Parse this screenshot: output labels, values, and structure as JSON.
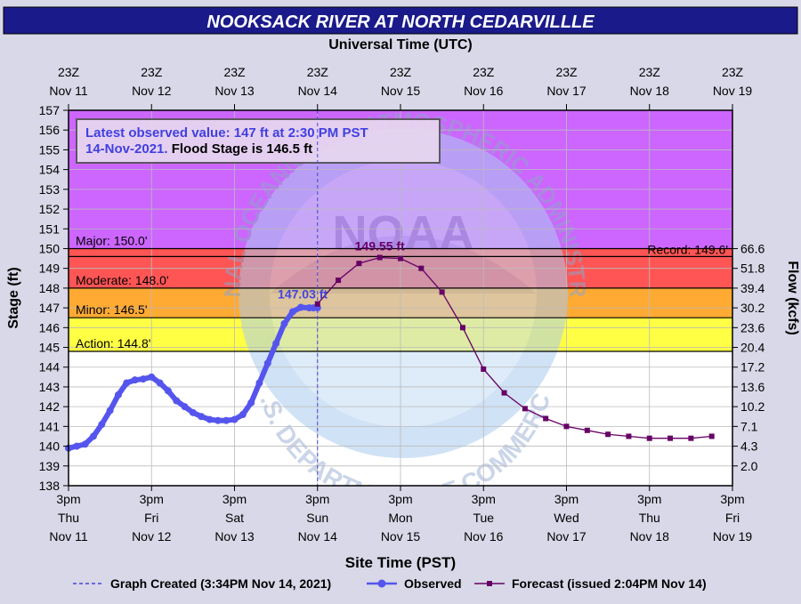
{
  "chart_data": {
    "type": "line",
    "title": "NOOKSACK RIVER AT NORTH CEDARVILLLE",
    "top_axis_title": "Universal Time (UTC)",
    "top_ticks": [
      {
        "l1": "23Z",
        "l2": "Nov 11"
      },
      {
        "l1": "23Z",
        "l2": "Nov 12"
      },
      {
        "l1": "23Z",
        "l2": "Nov 13"
      },
      {
        "l1": "23Z",
        "l2": "Nov 14"
      },
      {
        "l1": "23Z",
        "l2": "Nov 15"
      },
      {
        "l1": "23Z",
        "l2": "Nov 16"
      },
      {
        "l1": "23Z",
        "l2": "Nov 17"
      },
      {
        "l1": "23Z",
        "l2": "Nov 18"
      },
      {
        "l1": "23Z",
        "l2": "Nov 19"
      }
    ],
    "bottom_axis_title": "Site Time (PST)",
    "bottom_ticks": [
      {
        "l1": "3pm",
        "l2": "Thu",
        "l3": "Nov 11"
      },
      {
        "l1": "3pm",
        "l2": "Fri",
        "l3": "Nov 12"
      },
      {
        "l1": "3pm",
        "l2": "Sat",
        "l3": "Nov 13"
      },
      {
        "l1": "3pm",
        "l2": "Sun",
        "l3": "Nov 14"
      },
      {
        "l1": "3pm",
        "l2": "Mon",
        "l3": "Nov 15"
      },
      {
        "l1": "3pm",
        "l2": "Tue",
        "l3": "Nov 16"
      },
      {
        "l1": "3pm",
        "l2": "Wed",
        "l3": "Nov 17"
      },
      {
        "l1": "3pm",
        "l2": "Thu",
        "l3": "Nov 18"
      },
      {
        "l1": "3pm",
        "l2": "Fri",
        "l3": "Nov 19"
      }
    ],
    "x_unit": "days since 3pm PST Nov 11",
    "xlim": [
      0,
      8
    ],
    "ylabel": "Stage (ft)",
    "ylim": [
      138,
      157
    ],
    "y_ticks": [
      138,
      139,
      140,
      141,
      142,
      143,
      144,
      145,
      146,
      147,
      148,
      149,
      150,
      151,
      152,
      153,
      154,
      155,
      156,
      157
    ],
    "y2label": "Flow (kcfs)",
    "y2_ticks": [
      {
        "stage": 150,
        "label": "66.6"
      },
      {
        "stage": 149,
        "label": "51.8"
      },
      {
        "stage": 148,
        "label": "39.4"
      },
      {
        "stage": 147,
        "label": "30.2"
      },
      {
        "stage": 146,
        "label": "23.6"
      },
      {
        "stage": 145,
        "label": "20.4"
      },
      {
        "stage": 144,
        "label": "17.2"
      },
      {
        "stage": 143,
        "label": "13.6"
      },
      {
        "stage": 142,
        "label": "10.2"
      },
      {
        "stage": 141,
        "label": "7.1"
      },
      {
        "stage": 140,
        "label": "4.3"
      },
      {
        "stage": 139,
        "label": "2.0"
      }
    ],
    "bands": [
      {
        "name": "Above Major",
        "from": 150.0,
        "to": 157,
        "color": "#cc66ff"
      },
      {
        "name": "Major",
        "from": 148.0,
        "to": 150.0,
        "color": "#ff5555"
      },
      {
        "name": "Moderate",
        "from": 146.5,
        "to": 148.0,
        "color": "#ffaa33"
      },
      {
        "name": "Minor",
        "from": 144.8,
        "to": 146.5,
        "color": "#ffff44"
      }
    ],
    "thresholds": [
      {
        "label": "Major: 150.0'",
        "value": 150.0
      },
      {
        "label": "Moderate: 148.0'",
        "value": 148.0
      },
      {
        "label": "Minor: 146.5'",
        "value": 146.5
      },
      {
        "label": "Action: 144.8'",
        "value": 144.8
      }
    ],
    "record": {
      "label": "Record: 149.6'",
      "value": 149.6
    },
    "info_box": {
      "line1": "Latest observed value: 147 ft at 2:30 PM PST",
      "line2a": "14-Nov-2021.",
      "line2b": " Flood Stage is 146.5 ft"
    },
    "created_x": 3.0,
    "observed": {
      "name": "Observed",
      "color": "#5555ee",
      "x": [
        0,
        0.1,
        0.2,
        0.3,
        0.4,
        0.5,
        0.6,
        0.7,
        0.8,
        0.9,
        1.0,
        1.1,
        1.2,
        1.3,
        1.4,
        1.5,
        1.6,
        1.7,
        1.8,
        1.9,
        2.0,
        2.1,
        2.2,
        2.3,
        2.4,
        2.5,
        2.6,
        2.7,
        2.8,
        2.9,
        2.95,
        3.0
      ],
      "y": [
        139.9,
        140.0,
        140.1,
        140.5,
        141.1,
        141.8,
        142.6,
        143.2,
        143.35,
        143.4,
        143.5,
        143.2,
        142.8,
        142.3,
        142.0,
        141.7,
        141.5,
        141.35,
        141.3,
        141.3,
        141.35,
        141.6,
        142.2,
        143.2,
        144.2,
        145.2,
        146.2,
        146.8,
        147.03,
        147.0,
        147.0,
        147.0
      ],
      "peak_label": "147.03 ft",
      "peak_x": 2.8,
      "peak_y": 147.03
    },
    "forecast": {
      "name": "Forecast (issued 2:04PM Nov 14)",
      "color": "#660066",
      "x": [
        3.0,
        3.25,
        3.5,
        3.75,
        4.0,
        4.25,
        4.5,
        4.75,
        5.0,
        5.25,
        5.5,
        5.75,
        6.0,
        6.25,
        6.5,
        6.75,
        7.0,
        7.25,
        7.5,
        7.75
      ],
      "y": [
        147.2,
        148.4,
        149.25,
        149.55,
        149.5,
        149.0,
        147.8,
        146.0,
        143.9,
        142.7,
        141.9,
        141.4,
        141.0,
        140.8,
        140.6,
        140.5,
        140.4,
        140.4,
        140.4,
        140.5
      ],
      "peak_label": "149.55 ft",
      "peak_x": 3.75,
      "peak_y": 149.55
    },
    "legend": {
      "created": "Graph Created (3:34PM Nov 14, 2021)",
      "observed": "Observed",
      "forecast": "Forecast (issued 2:04PM Nov 14)"
    },
    "watermark": {
      "center": "NOAA",
      "top_text": "NATIONAL OCEANIC AND ATMOSPHERIC ADMINISTRATION",
      "bottom_text": "U.S. DEPARTMENT OF COMMERCE"
    },
    "grid": true,
    "legend_position": "bottom"
  }
}
